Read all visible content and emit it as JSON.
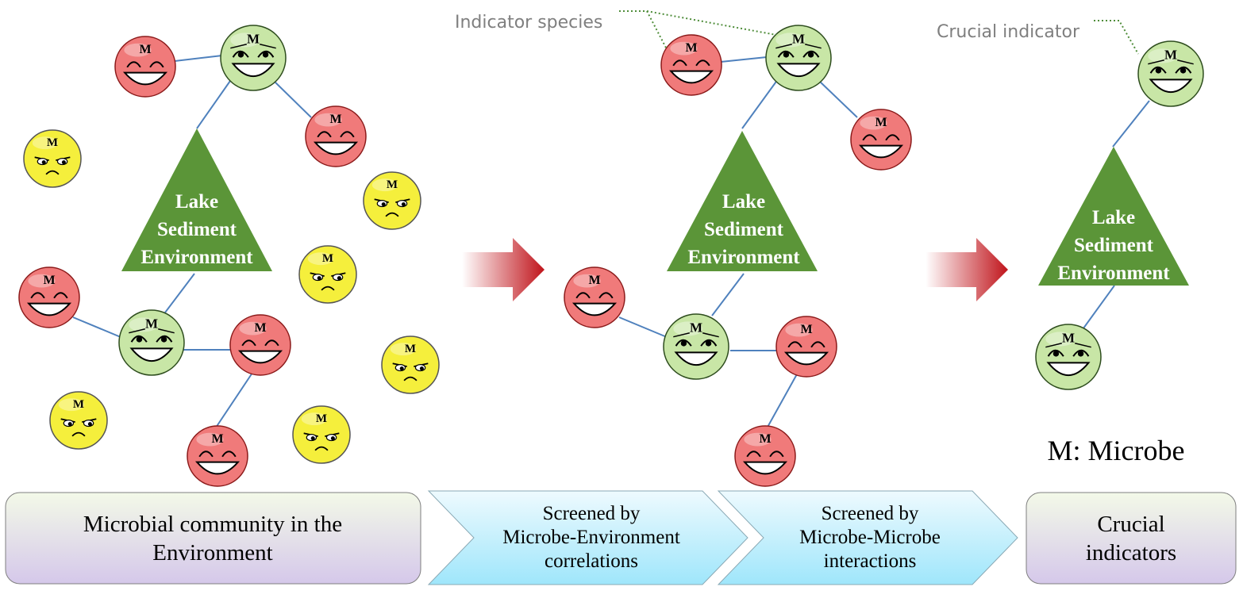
{
  "colors": {
    "triangle": "#5b9538",
    "edge": "#4f81bd",
    "green_face_fill": "#c8e6a6",
    "green_face_stroke": "#2e4d1e",
    "red_face_fill": "#f07a7a",
    "red_face_stroke": "#8b1a1a",
    "yellow_face_fill": "#f5ef3c",
    "yellow_face_stroke": "#555555",
    "callout_line": "#4f8d3a",
    "callout_text": "#7f7f7f",
    "arrow": "#c0141b",
    "chevron_top": "#e9f8fd",
    "chevron_bottom": "#9fe6fb",
    "box_top": "#f1f8e6",
    "box_bottom": "#d6cbea"
  },
  "microbe_letter": "M",
  "triangle_label": {
    "line1": "Lake",
    "line2": "Sediment",
    "line3": "Environment"
  },
  "callouts": {
    "indicator_species": "Indicator species",
    "crucial_indicator": "Crucial indicator"
  },
  "legend": "M: Microbe",
  "steps": {
    "community": {
      "line1": "Microbial community in the",
      "line2": "Environment"
    },
    "screen_env": {
      "line1": "Screened by",
      "line2": "Microbe-Environment",
      "line3": "correlations"
    },
    "screen_microbe": {
      "line1": "Screened by",
      "line2": "Microbe-Microbe",
      "line3": "interactions"
    },
    "crucial": {
      "line1": "Crucial",
      "line2": "indicators"
    }
  },
  "icons": {
    "indicator": "happy-face-green-icon",
    "associated": "laughing-face-red-icon",
    "unrelated": "sad-face-yellow-icon",
    "flow_arrow": "gradient-right-arrow-icon"
  }
}
